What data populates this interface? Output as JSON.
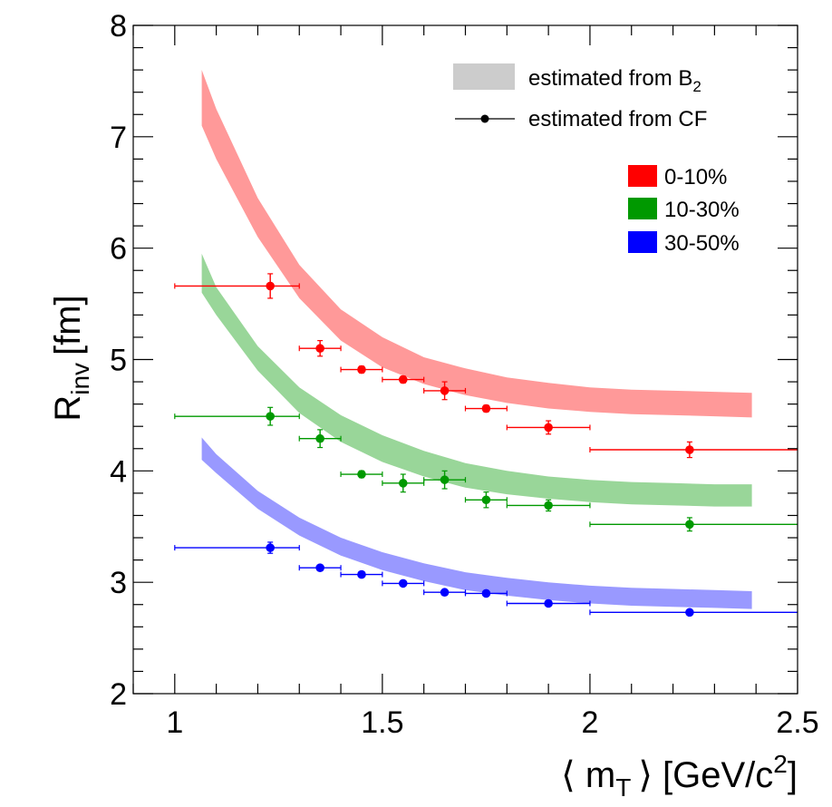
{
  "chart_data": {
    "type": "scatter",
    "title": "",
    "xlabel": {
      "open": "⟨ m",
      "sub": "T",
      "close": "⟩ [GeV/c",
      "sup": "2",
      "end": "]"
    },
    "ylabel": {
      "main": "R",
      "sub": "inv",
      "unit": "[fm]"
    },
    "xlim": [
      0.9,
      2.5
    ],
    "ylim": [
      2,
      8
    ],
    "x_ticks": [
      1,
      1.5,
      2,
      2.5
    ],
    "x_tick_labels": [
      "1",
      "1.5",
      "2",
      "2.5"
    ],
    "y_ticks": [
      2,
      3,
      4,
      5,
      6,
      7,
      8
    ],
    "y_tick_labels": [
      "2",
      "3",
      "4",
      "5",
      "6",
      "7",
      "8"
    ],
    "legend_method": [
      {
        "label": "estimated from B",
        "sub": "2",
        "style": "band",
        "color": "#cccccc"
      },
      {
        "label": "estimated from CF",
        "style": "marker",
        "color": "#000000"
      }
    ],
    "legend_centrality": [
      {
        "label": "0-10%",
        "color": "#ff0000"
      },
      {
        "label": "10-30%",
        "color": "#009900"
      },
      {
        "label": "30-50%",
        "color": "#0000ff"
      }
    ],
    "bands": [
      {
        "name": "0-10%",
        "color": "#ff9999",
        "x": [
          1.065,
          1.1,
          1.2,
          1.3,
          1.4,
          1.5,
          1.6,
          1.7,
          1.8,
          1.9,
          2.0,
          2.1,
          2.2,
          2.3,
          2.39
        ],
        "upper": [
          7.6,
          7.25,
          6.45,
          5.85,
          5.45,
          5.2,
          5.02,
          4.92,
          4.84,
          4.79,
          4.75,
          4.73,
          4.72,
          4.71,
          4.7
        ],
        "lower": [
          7.1,
          6.8,
          6.1,
          5.55,
          5.17,
          4.93,
          4.78,
          4.68,
          4.61,
          4.56,
          4.53,
          4.51,
          4.5,
          4.49,
          4.48
        ]
      },
      {
        "name": "10-30%",
        "color": "#99d699",
        "x": [
          1.065,
          1.1,
          1.2,
          1.3,
          1.4,
          1.5,
          1.6,
          1.7,
          1.8,
          1.9,
          2.0,
          2.1,
          2.2,
          2.3,
          2.39
        ],
        "upper": [
          5.95,
          5.65,
          5.12,
          4.75,
          4.5,
          4.32,
          4.18,
          4.07,
          4.0,
          3.95,
          3.92,
          3.9,
          3.89,
          3.88,
          3.88
        ],
        "lower": [
          5.6,
          5.4,
          4.9,
          4.52,
          4.26,
          4.08,
          3.95,
          3.85,
          3.79,
          3.75,
          3.72,
          3.7,
          3.69,
          3.68,
          3.68
        ]
      },
      {
        "name": "30-50%",
        "color": "#9999ff",
        "x": [
          1.065,
          1.1,
          1.2,
          1.3,
          1.4,
          1.5,
          1.6,
          1.7,
          1.8,
          1.9,
          2.0,
          2.1,
          2.2,
          2.3,
          2.39
        ],
        "upper": [
          4.3,
          4.15,
          3.82,
          3.58,
          3.4,
          3.27,
          3.17,
          3.09,
          3.04,
          3.0,
          2.97,
          2.95,
          2.94,
          2.93,
          2.92
        ],
        "lower": [
          4.1,
          3.98,
          3.66,
          3.42,
          3.24,
          3.11,
          3.01,
          2.93,
          2.88,
          2.84,
          2.81,
          2.79,
          2.78,
          2.77,
          2.76
        ]
      }
    ],
    "series": [
      {
        "name": "0-10%",
        "color": "#ff0000",
        "points": [
          {
            "x": 1.23,
            "y": 5.66,
            "xlo": 1.0,
            "xhi": 1.3,
            "err": 0.11
          },
          {
            "x": 1.35,
            "y": 5.1,
            "xlo": 1.3,
            "xhi": 1.4,
            "err": 0.07
          },
          {
            "x": 1.45,
            "y": 4.91,
            "xlo": 1.4,
            "xhi": 1.5,
            "err": 0.03
          },
          {
            "x": 1.55,
            "y": 4.82,
            "xlo": 1.5,
            "xhi": 1.6,
            "err": 0.03
          },
          {
            "x": 1.65,
            "y": 4.72,
            "xlo": 1.6,
            "xhi": 1.7,
            "err": 0.08
          },
          {
            "x": 1.75,
            "y": 4.56,
            "xlo": 1.7,
            "xhi": 1.8,
            "err": 0.03
          },
          {
            "x": 1.9,
            "y": 4.39,
            "xlo": 1.8,
            "xhi": 2.0,
            "err": 0.06
          },
          {
            "x": 2.24,
            "y": 4.19,
            "xlo": 2.0,
            "xhi": 2.5,
            "err": 0.07
          }
        ]
      },
      {
        "name": "10-30%",
        "color": "#009900",
        "points": [
          {
            "x": 1.23,
            "y": 4.49,
            "xlo": 1.0,
            "xhi": 1.3,
            "err": 0.08
          },
          {
            "x": 1.35,
            "y": 4.29,
            "xlo": 1.3,
            "xhi": 1.4,
            "err": 0.08
          },
          {
            "x": 1.45,
            "y": 3.97,
            "xlo": 1.4,
            "xhi": 1.5,
            "err": 0.03
          },
          {
            "x": 1.55,
            "y": 3.89,
            "xlo": 1.5,
            "xhi": 1.6,
            "err": 0.08
          },
          {
            "x": 1.65,
            "y": 3.92,
            "xlo": 1.6,
            "xhi": 1.7,
            "err": 0.08
          },
          {
            "x": 1.75,
            "y": 3.74,
            "xlo": 1.7,
            "xhi": 1.8,
            "err": 0.07
          },
          {
            "x": 1.9,
            "y": 3.69,
            "xlo": 1.8,
            "xhi": 2.0,
            "err": 0.05
          },
          {
            "x": 2.24,
            "y": 3.52,
            "xlo": 2.0,
            "xhi": 2.5,
            "err": 0.06
          }
        ]
      },
      {
        "name": "30-50%",
        "color": "#0000ff",
        "points": [
          {
            "x": 1.23,
            "y": 3.31,
            "xlo": 1.0,
            "xhi": 1.3,
            "err": 0.05
          },
          {
            "x": 1.35,
            "y": 3.13,
            "xlo": 1.3,
            "xhi": 1.4,
            "err": 0.02
          },
          {
            "x": 1.45,
            "y": 3.07,
            "xlo": 1.4,
            "xhi": 1.5,
            "err": 0.02
          },
          {
            "x": 1.55,
            "y": 2.99,
            "xlo": 1.5,
            "xhi": 1.6,
            "err": 0.02
          },
          {
            "x": 1.65,
            "y": 2.91,
            "xlo": 1.6,
            "xhi": 1.7,
            "err": 0.02
          },
          {
            "x": 1.75,
            "y": 2.9,
            "xlo": 1.7,
            "xhi": 1.8,
            "err": 0.02
          },
          {
            "x": 1.9,
            "y": 2.81,
            "xlo": 1.8,
            "xhi": 2.0,
            "err": 0.02
          },
          {
            "x": 2.24,
            "y": 2.73,
            "xlo": 2.0,
            "xhi": 2.5,
            "err": 0.02
          }
        ]
      }
    ]
  }
}
